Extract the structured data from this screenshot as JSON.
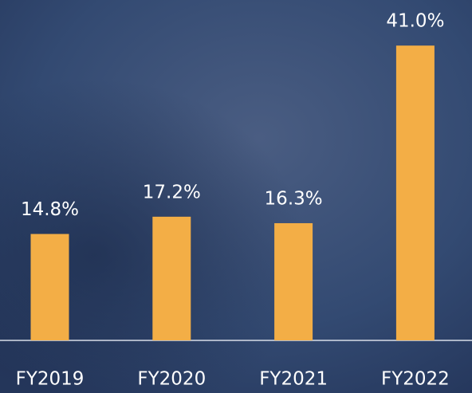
{
  "chart_data": {
    "type": "bar",
    "categories": [
      "FY2019",
      "FY2020",
      "FY2021",
      "FY2022"
    ],
    "values": [
      14.8,
      17.2,
      16.3,
      41.0
    ],
    "value_labels": [
      "14.8%",
      "17.2%",
      "16.3%",
      "41.0%"
    ],
    "color": "#f3ae46"
  }
}
